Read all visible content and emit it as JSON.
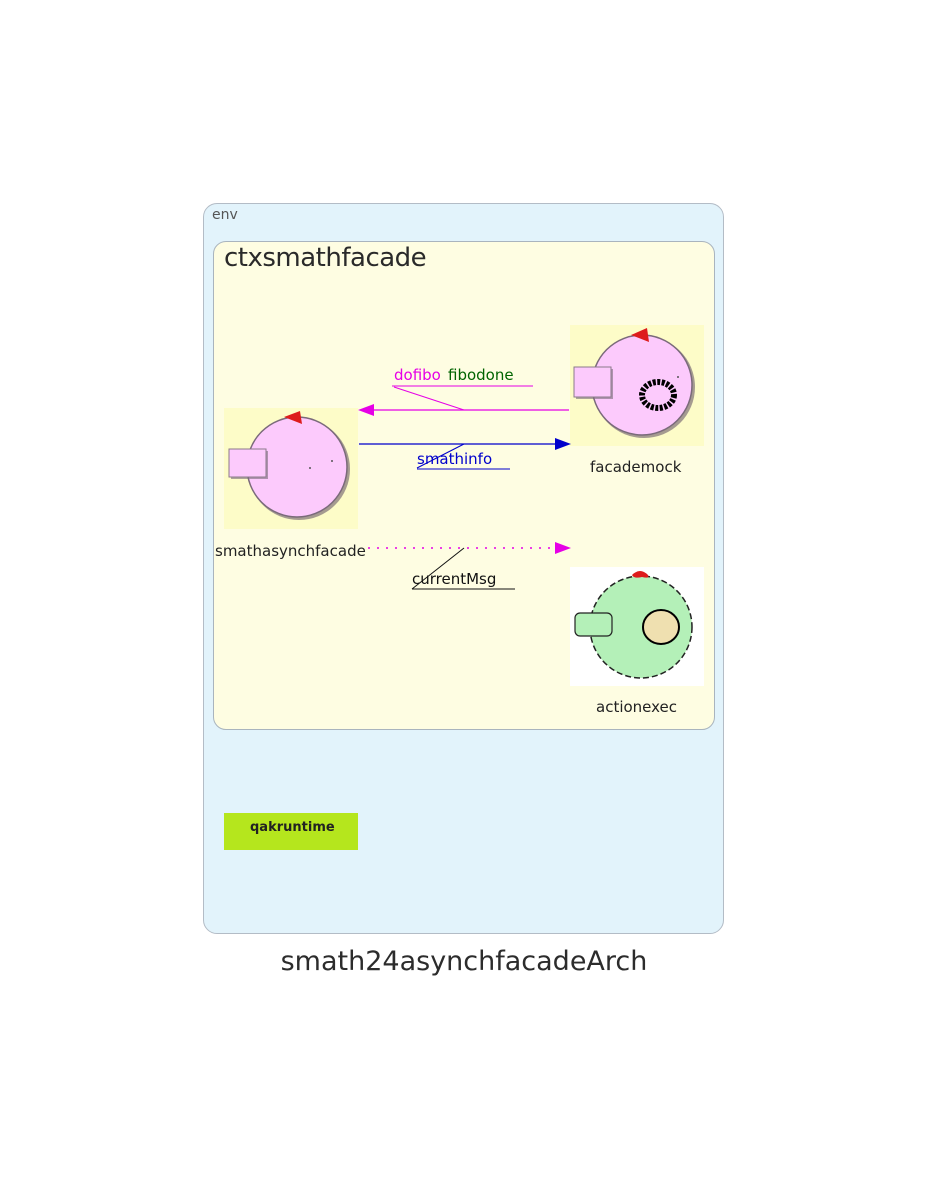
{
  "env": {
    "label": "env"
  },
  "context": {
    "title": "ctxsmathfacade"
  },
  "actors": {
    "smathasynchfacade": {
      "label": "smathasynchfacade"
    },
    "facademock": {
      "label": "facademock"
    },
    "actionexec": {
      "label": "actionexec"
    }
  },
  "messages": {
    "dofibo": "dofibo",
    "fibodone": "fibodone",
    "smathinfo": "smathinfo",
    "currentMsg": "currentMsg"
  },
  "runtime": {
    "label": "qakruntime"
  },
  "title": "smath24asynchfacadeArch",
  "colors": {
    "env_bg": "#e2f3fb",
    "context_bg": "#fefde2",
    "actor_pink": "#fccafc",
    "actor_green": "#b4f0b8",
    "dofibo": "#e600e6",
    "fibodone": "#006400",
    "smathinfo": "#0000cc",
    "runtime_bg": "#b5e61d"
  }
}
